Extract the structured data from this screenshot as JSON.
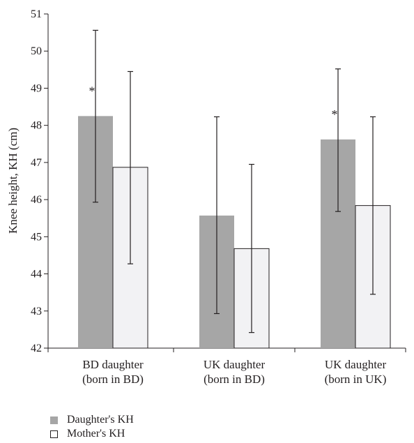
{
  "chart_data": {
    "type": "bar",
    "title": "",
    "xlabel": "",
    "ylabel": "Knee height, KH (cm)",
    "ylim": [
      42,
      51
    ],
    "yticks": [
      42,
      43,
      44,
      45,
      46,
      47,
      48,
      49,
      50,
      51
    ],
    "categories": [
      [
        "BD daughter",
        "(born in BD)"
      ],
      [
        "UK daughter",
        "(born in BD)"
      ],
      [
        "UK daughter",
        "(born in UK)"
      ]
    ],
    "series": [
      {
        "name": "Daughter's KH",
        "color": "#a6a6a6",
        "values": [
          48.25,
          45.57,
          47.62
        ],
        "error_low": [
          45.93,
          42.93,
          45.68
        ],
        "error_high": [
          50.56,
          48.23,
          49.52
        ],
        "annotations": [
          "*",
          "",
          "*"
        ]
      },
      {
        "name": "Mother's KH",
        "color": "#f2f2f4",
        "values": [
          46.87,
          44.68,
          45.84
        ],
        "error_low": [
          44.27,
          42.42,
          43.45
        ],
        "error_high": [
          49.45,
          46.95,
          48.23
        ],
        "annotations": [
          "",
          "",
          ""
        ]
      }
    ],
    "grid": false,
    "legend_position": "bottom-left"
  }
}
